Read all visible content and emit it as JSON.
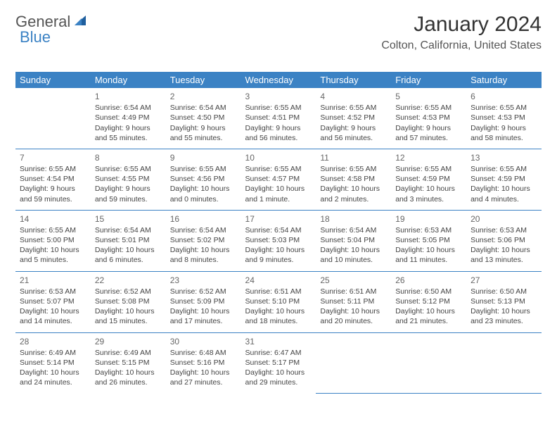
{
  "logo": {
    "part1": "General",
    "part2": "Blue"
  },
  "title": "January 2024",
  "location": "Colton, California, United States",
  "day_headers": [
    "Sunday",
    "Monday",
    "Tuesday",
    "Wednesday",
    "Thursday",
    "Friday",
    "Saturday"
  ],
  "colors": {
    "header_bg": "#3b82c4",
    "header_text": "#ffffff",
    "text": "#444444",
    "brand_blue": "#3b82c4"
  },
  "weeks": [
    [
      null,
      {
        "n": "1",
        "sr": "Sunrise: 6:54 AM",
        "ss": "Sunset: 4:49 PM",
        "dl": "Daylight: 9 hours and 55 minutes."
      },
      {
        "n": "2",
        "sr": "Sunrise: 6:54 AM",
        "ss": "Sunset: 4:50 PM",
        "dl": "Daylight: 9 hours and 55 minutes."
      },
      {
        "n": "3",
        "sr": "Sunrise: 6:55 AM",
        "ss": "Sunset: 4:51 PM",
        "dl": "Daylight: 9 hours and 56 minutes."
      },
      {
        "n": "4",
        "sr": "Sunrise: 6:55 AM",
        "ss": "Sunset: 4:52 PM",
        "dl": "Daylight: 9 hours and 56 minutes."
      },
      {
        "n": "5",
        "sr": "Sunrise: 6:55 AM",
        "ss": "Sunset: 4:53 PM",
        "dl": "Daylight: 9 hours and 57 minutes."
      },
      {
        "n": "6",
        "sr": "Sunrise: 6:55 AM",
        "ss": "Sunset: 4:53 PM",
        "dl": "Daylight: 9 hours and 58 minutes."
      }
    ],
    [
      {
        "n": "7",
        "sr": "Sunrise: 6:55 AM",
        "ss": "Sunset: 4:54 PM",
        "dl": "Daylight: 9 hours and 59 minutes."
      },
      {
        "n": "8",
        "sr": "Sunrise: 6:55 AM",
        "ss": "Sunset: 4:55 PM",
        "dl": "Daylight: 9 hours and 59 minutes."
      },
      {
        "n": "9",
        "sr": "Sunrise: 6:55 AM",
        "ss": "Sunset: 4:56 PM",
        "dl": "Daylight: 10 hours and 0 minutes."
      },
      {
        "n": "10",
        "sr": "Sunrise: 6:55 AM",
        "ss": "Sunset: 4:57 PM",
        "dl": "Daylight: 10 hours and 1 minute."
      },
      {
        "n": "11",
        "sr": "Sunrise: 6:55 AM",
        "ss": "Sunset: 4:58 PM",
        "dl": "Daylight: 10 hours and 2 minutes."
      },
      {
        "n": "12",
        "sr": "Sunrise: 6:55 AM",
        "ss": "Sunset: 4:59 PM",
        "dl": "Daylight: 10 hours and 3 minutes."
      },
      {
        "n": "13",
        "sr": "Sunrise: 6:55 AM",
        "ss": "Sunset: 4:59 PM",
        "dl": "Daylight: 10 hours and 4 minutes."
      }
    ],
    [
      {
        "n": "14",
        "sr": "Sunrise: 6:55 AM",
        "ss": "Sunset: 5:00 PM",
        "dl": "Daylight: 10 hours and 5 minutes."
      },
      {
        "n": "15",
        "sr": "Sunrise: 6:54 AM",
        "ss": "Sunset: 5:01 PM",
        "dl": "Daylight: 10 hours and 6 minutes."
      },
      {
        "n": "16",
        "sr": "Sunrise: 6:54 AM",
        "ss": "Sunset: 5:02 PM",
        "dl": "Daylight: 10 hours and 8 minutes."
      },
      {
        "n": "17",
        "sr": "Sunrise: 6:54 AM",
        "ss": "Sunset: 5:03 PM",
        "dl": "Daylight: 10 hours and 9 minutes."
      },
      {
        "n": "18",
        "sr": "Sunrise: 6:54 AM",
        "ss": "Sunset: 5:04 PM",
        "dl": "Daylight: 10 hours and 10 minutes."
      },
      {
        "n": "19",
        "sr": "Sunrise: 6:53 AM",
        "ss": "Sunset: 5:05 PM",
        "dl": "Daylight: 10 hours and 11 minutes."
      },
      {
        "n": "20",
        "sr": "Sunrise: 6:53 AM",
        "ss": "Sunset: 5:06 PM",
        "dl": "Daylight: 10 hours and 13 minutes."
      }
    ],
    [
      {
        "n": "21",
        "sr": "Sunrise: 6:53 AM",
        "ss": "Sunset: 5:07 PM",
        "dl": "Daylight: 10 hours and 14 minutes."
      },
      {
        "n": "22",
        "sr": "Sunrise: 6:52 AM",
        "ss": "Sunset: 5:08 PM",
        "dl": "Daylight: 10 hours and 15 minutes."
      },
      {
        "n": "23",
        "sr": "Sunrise: 6:52 AM",
        "ss": "Sunset: 5:09 PM",
        "dl": "Daylight: 10 hours and 17 minutes."
      },
      {
        "n": "24",
        "sr": "Sunrise: 6:51 AM",
        "ss": "Sunset: 5:10 PM",
        "dl": "Daylight: 10 hours and 18 minutes."
      },
      {
        "n": "25",
        "sr": "Sunrise: 6:51 AM",
        "ss": "Sunset: 5:11 PM",
        "dl": "Daylight: 10 hours and 20 minutes."
      },
      {
        "n": "26",
        "sr": "Sunrise: 6:50 AM",
        "ss": "Sunset: 5:12 PM",
        "dl": "Daylight: 10 hours and 21 minutes."
      },
      {
        "n": "27",
        "sr": "Sunrise: 6:50 AM",
        "ss": "Sunset: 5:13 PM",
        "dl": "Daylight: 10 hours and 23 minutes."
      }
    ],
    [
      {
        "n": "28",
        "sr": "Sunrise: 6:49 AM",
        "ss": "Sunset: 5:14 PM",
        "dl": "Daylight: 10 hours and 24 minutes."
      },
      {
        "n": "29",
        "sr": "Sunrise: 6:49 AM",
        "ss": "Sunset: 5:15 PM",
        "dl": "Daylight: 10 hours and 26 minutes."
      },
      {
        "n": "30",
        "sr": "Sunrise: 6:48 AM",
        "ss": "Sunset: 5:16 PM",
        "dl": "Daylight: 10 hours and 27 minutes."
      },
      {
        "n": "31",
        "sr": "Sunrise: 6:47 AM",
        "ss": "Sunset: 5:17 PM",
        "dl": "Daylight: 10 hours and 29 minutes."
      },
      null,
      null,
      null
    ]
  ]
}
